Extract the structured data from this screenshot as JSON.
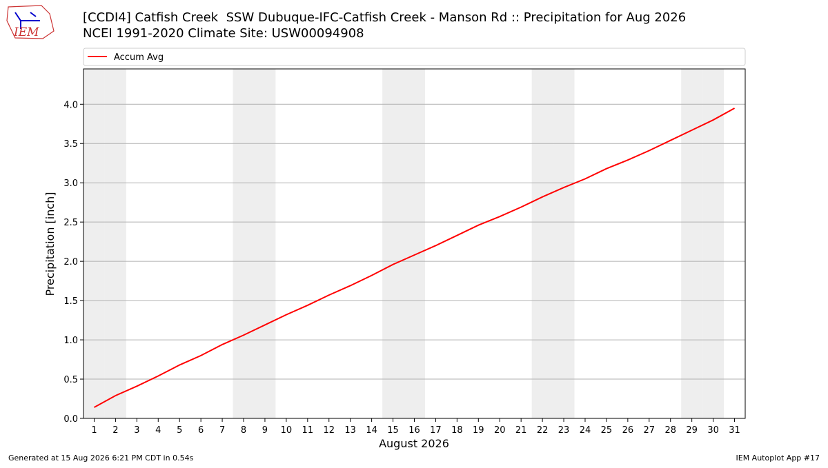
{
  "chart_data": {
    "type": "line",
    "title": "[CCDI4] Catfish Creek  SSW Dubuque-IFC-Catfish Creek - Manson Rd :: Precipitation for Aug 2026",
    "subtitle": "NCEI 1991-2020 Climate Site: USW00094908",
    "xlabel": "August 2026",
    "ylabel": "Precipitation [inch]",
    "x": [
      1,
      2,
      3,
      4,
      5,
      6,
      7,
      8,
      9,
      10,
      11,
      12,
      13,
      14,
      15,
      16,
      17,
      18,
      19,
      20,
      21,
      22,
      23,
      24,
      25,
      26,
      27,
      28,
      29,
      30,
      31
    ],
    "series": [
      {
        "name": "Accum Avg",
        "color": "#ff0000",
        "values": [
          0.14,
          0.29,
          0.41,
          0.54,
          0.68,
          0.8,
          0.94,
          1.06,
          1.19,
          1.32,
          1.44,
          1.57,
          1.69,
          1.82,
          1.96,
          2.08,
          2.2,
          2.33,
          2.46,
          2.57,
          2.69,
          2.82,
          2.94,
          3.05,
          3.18,
          3.29,
          3.41,
          3.54,
          3.67,
          3.8,
          3.95
        ]
      }
    ],
    "xlim": [
      0.5,
      31.5
    ],
    "xticks": [
      1,
      2,
      3,
      4,
      5,
      6,
      7,
      8,
      9,
      10,
      11,
      12,
      13,
      14,
      15,
      16,
      17,
      18,
      19,
      20,
      21,
      22,
      23,
      24,
      25,
      26,
      27,
      28,
      29,
      30,
      31
    ],
    "ylim": [
      0,
      4.45
    ],
    "yticks": [
      {
        "value": 0,
        "label": "0.0"
      },
      0.5,
      {
        "value": 1,
        "label": "1.0"
      },
      1.5,
      {
        "value": 2,
        "label": "2.0"
      },
      2.5,
      {
        "value": 3,
        "label": "3.0"
      },
      3.5,
      {
        "value": 4,
        "label": "4.0"
      }
    ],
    "grid": true,
    "shaded_days": [
      1,
      2,
      8,
      9,
      15,
      16,
      22,
      23,
      29,
      30
    ],
    "legend": "top"
  },
  "logo": "IEM",
  "footer": {
    "left": "Generated at 15 Aug 2026 6:21 PM CDT in 0.54s",
    "right": "IEM Autoplot App #17"
  }
}
